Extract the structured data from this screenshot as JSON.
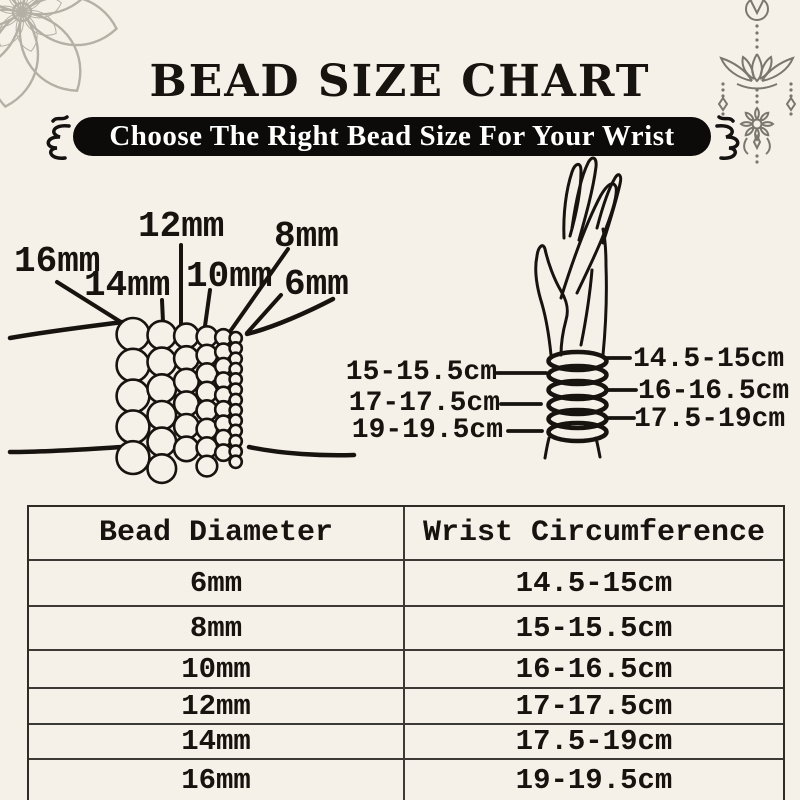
{
  "colors": {
    "background": "#f6f1e8",
    "ink": "#17130e",
    "pill_background": "#0c0b09",
    "pill_text": "#ffffff",
    "ornament_light_gray": "#b4b0a6",
    "ornament_dark_gray": "#7a776f"
  },
  "header": {
    "title": "BEAD SIZE CHART",
    "subtitle": "Choose The Right Bead Size For Your Wrist"
  },
  "decor_icons": {
    "top_left": "mandala-flower-outline",
    "top_right": "lotus-hanging-ornament",
    "subtitle_flanks": "curly-flourish-bracket"
  },
  "bead_diagram": {
    "labels": [
      "16mm",
      "14mm",
      "12mm",
      "10mm",
      "8mm",
      "6mm"
    ],
    "bead_sizes_mm": [
      16,
      14,
      12,
      10,
      8,
      6
    ]
  },
  "hand_diagram": {
    "left_labels": [
      "15-15.5cm",
      "17-17.5cm",
      "19-19.5cm"
    ],
    "right_labels": [
      "14.5-15cm",
      "16-16.5cm",
      "17.5-19cm"
    ]
  },
  "table": {
    "headers": [
      "Bead Diameter",
      "Wrist Circumference"
    ],
    "rows": [
      {
        "bead": "6mm",
        "wrist": "14.5-15cm"
      },
      {
        "bead": "8mm",
        "wrist": "15-15.5cm"
      },
      {
        "bead": "10mm",
        "wrist": "16-16.5cm"
      },
      {
        "bead": "12mm",
        "wrist": "17-17.5cm"
      },
      {
        "bead": "14mm",
        "wrist": "17.5-19cm"
      },
      {
        "bead": "16mm",
        "wrist": "19-19.5cm"
      }
    ]
  }
}
